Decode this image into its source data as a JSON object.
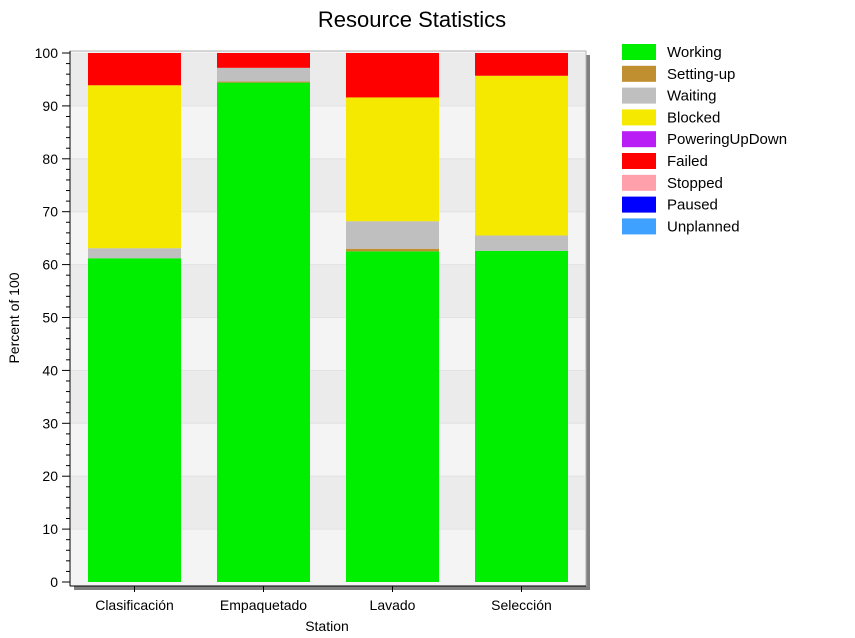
{
  "chart_data": {
    "type": "bar",
    "stacked": true,
    "title": "Resource Statistics",
    "xlabel": "Station",
    "ylabel": "Percent of 100",
    "ylim": [
      0,
      100
    ],
    "yticks": [
      0,
      10,
      20,
      30,
      40,
      50,
      60,
      70,
      80,
      90,
      100
    ],
    "categories": [
      "Clasificación",
      "Empaquetado",
      "Lavado",
      "Selección"
    ],
    "legend_position": "top-right",
    "series": [
      {
        "name": "Working",
        "color": "#00ee00",
        "values": [
          61.2,
          94.4,
          62.5,
          62.6
        ]
      },
      {
        "name": "Setting-up",
        "color": "#bf8f30",
        "values": [
          0,
          0.2,
          0.5,
          0
        ]
      },
      {
        "name": "Waiting",
        "color": "#bfbfbf",
        "values": [
          1.9,
          2.6,
          5.2,
          2.9
        ]
      },
      {
        "name": "Blocked",
        "color": "#f5e900",
        "values": [
          30.8,
          0,
          23.4,
          30.2
        ]
      },
      {
        "name": "PoweringUpDown",
        "color": "#b91ff4",
        "values": [
          0,
          0,
          0,
          0
        ]
      },
      {
        "name": "Failed",
        "color": "#ff0000",
        "values": [
          6.1,
          2.8,
          8.4,
          4.3
        ]
      },
      {
        "name": "Stopped",
        "color": "#ffa0ab",
        "values": [
          0,
          0,
          0,
          0
        ]
      },
      {
        "name": "Paused",
        "color": "#0000ff",
        "values": [
          0,
          0,
          0,
          0
        ]
      },
      {
        "name": "Unplanned",
        "color": "#3ea0ff",
        "values": [
          0,
          0,
          0,
          0
        ]
      }
    ]
  }
}
